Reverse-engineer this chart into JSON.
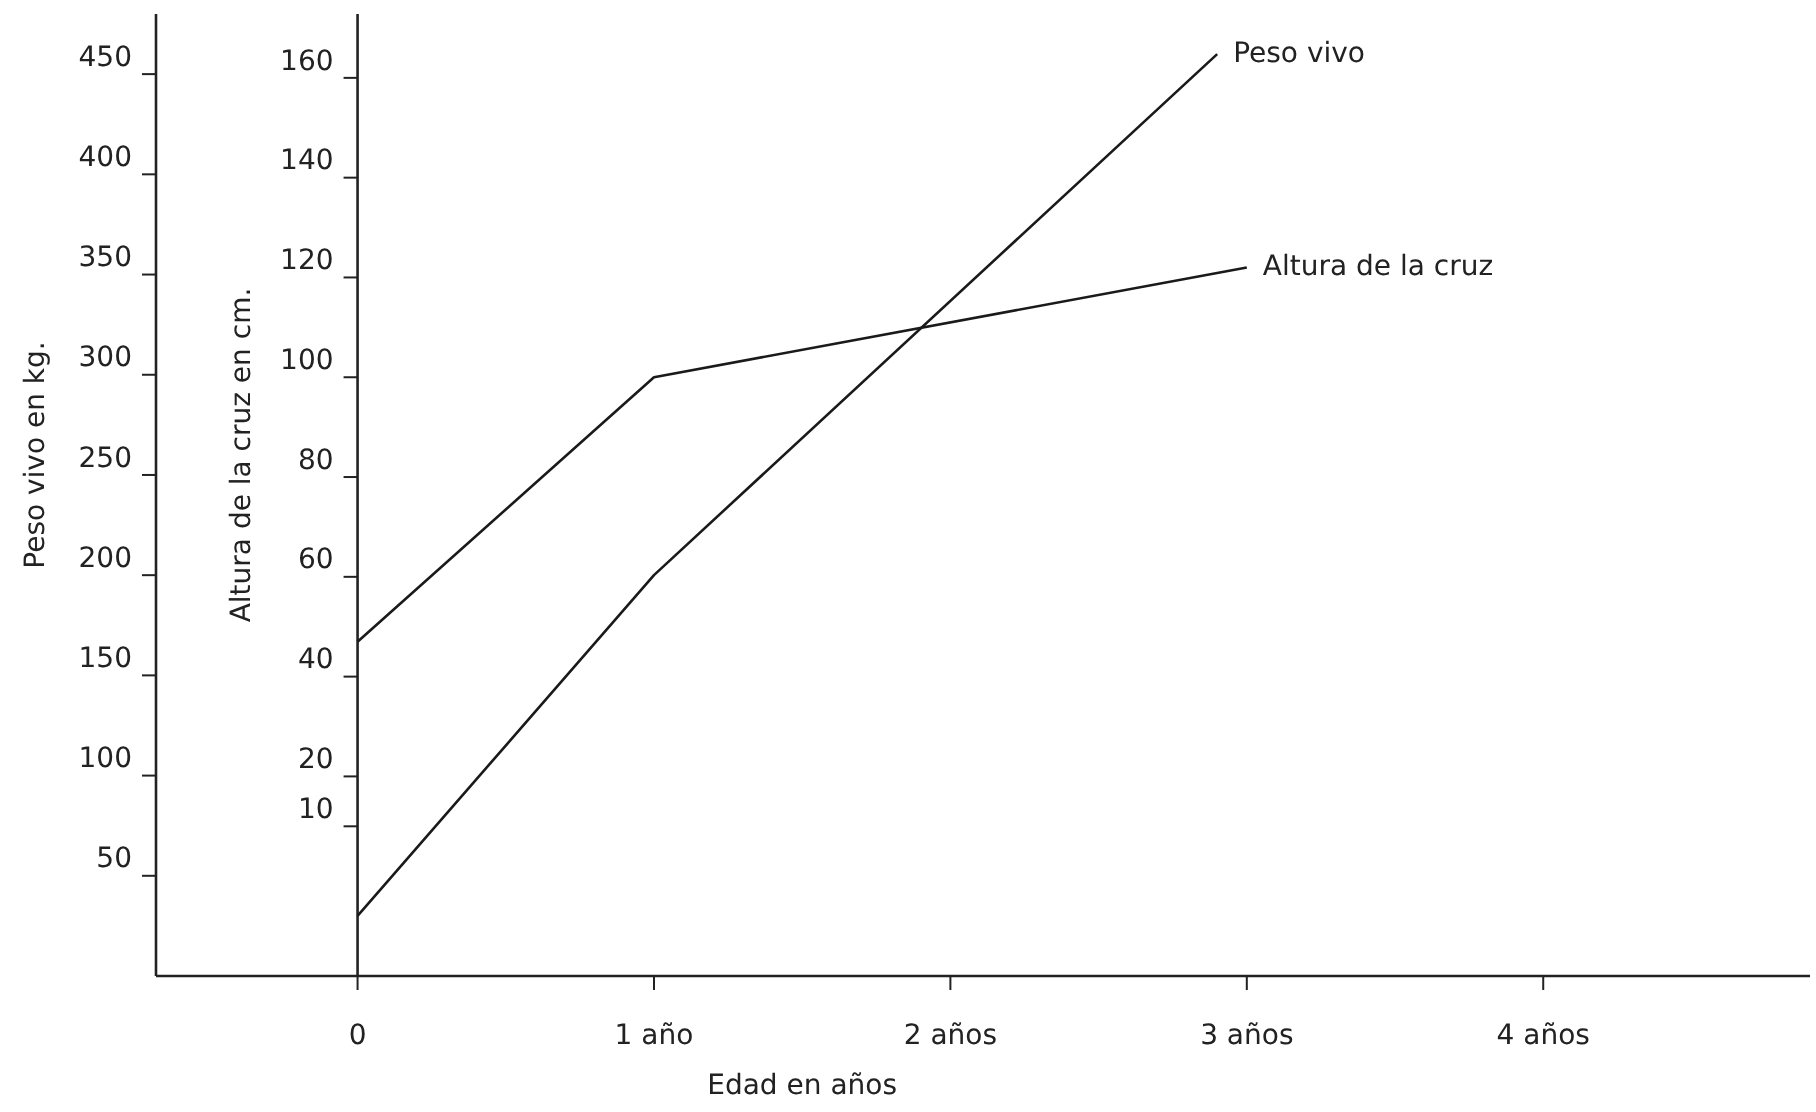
{
  "chart_data": {
    "type": "line",
    "xlabel": "Edad en años",
    "ylabel": "Peso vivo en kg.",
    "y2label": "Altura de la cruz en cm.",
    "xlim": [
      -0.68,
      4.9
    ],
    "xticks": [
      0,
      {
        "value": 1,
        "label": "1 año"
      },
      {
        "value": 2,
        "label": "2 años"
      },
      {
        "value": 3,
        "label": "3 años"
      },
      {
        "value": 4,
        "label": "4 años"
      }
    ],
    "ylim": [
      0,
      480
    ],
    "yticks": [
      50,
      100,
      150,
      200,
      250,
      300,
      350,
      400,
      450
    ],
    "y2lim": [
      -20,
      172.8
    ],
    "y2ticks": [
      10,
      20,
      40,
      60,
      80,
      100,
      120,
      140,
      160
    ],
    "series": [
      {
        "name": "Peso vivo",
        "color": "#1a1a1a",
        "x": [
          0,
          1,
          2.9
        ],
        "values": [
          30,
          200,
          460
        ]
      },
      {
        "name": "Altura de la cruz",
        "color": "#1a1a1a",
        "axis": "y2",
        "x": [
          0,
          1,
          3
        ],
        "values": [
          47,
          100,
          122
        ]
      }
    ],
    "grid": false,
    "marker": "none",
    "line_style": "solid"
  }
}
